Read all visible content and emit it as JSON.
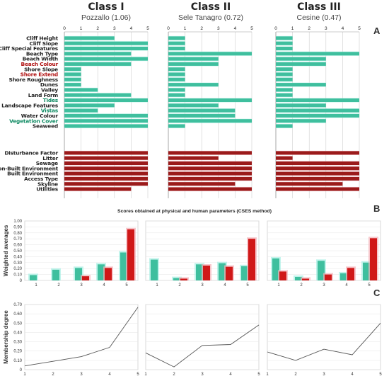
{
  "colors": {
    "physical": "#3fbf9e",
    "physical_glow": "#a8f0e4",
    "human": "#9b1b1b",
    "human_glow": "#f3b0b8",
    "red_bar": "#d01818",
    "grid": "#cfcfcf",
    "line": "#555555"
  },
  "figure": {
    "panel_labels": [
      "A",
      "B",
      "C"
    ],
    "caption": "Scores obtained at physical and human parameters (CSES method)"
  },
  "chart_data": [
    {
      "type": "bar",
      "orientation": "horizontal",
      "panel": "A",
      "titles": [
        {
          "name": "Class I",
          "subtitle": "Pozzallo (1.06)"
        },
        {
          "name": "Class II",
          "subtitle": "Sele Tanagro (0.72)"
        },
        {
          "name": "Class III",
          "subtitle": "Cesine (0.47)"
        }
      ],
      "xlim": [
        0,
        5
      ],
      "xticks": [
        "0",
        "1",
        "2",
        "3",
        "4",
        "5"
      ],
      "physical_parameters": [
        "Cliff Height",
        "Cliff Slope",
        "Cliff Special Features",
        "Beach Type",
        "Beach Width",
        "Beach Colour",
        "Shore Slope",
        "Shore Extend",
        "Shore Roughness",
        "Dunes",
        "Valley",
        "Land Form",
        "Tides",
        "Landscape Features",
        "Vistas",
        "Water Colour",
        "Vegetation Cover",
        "Seaweed"
      ],
      "human_parameters": [
        "Disturbance Factor",
        "Litter",
        "Sewage",
        "Non-Built Environment",
        "Built Environment",
        "Access Type",
        "Skyline",
        "Utilities"
      ],
      "label_colors": {
        "Beach Colour": "red",
        "Shore Extend": "red",
        "Tides": "green",
        "Vistas": "green",
        "Vegetation Cover": "green"
      },
      "series": [
        {
          "physical": [
            3,
            5,
            5,
            4,
            5,
            4,
            1,
            1,
            1,
            1,
            2,
            4,
            5,
            3,
            2,
            5,
            5,
            5
          ],
          "human": [
            5,
            5,
            5,
            5,
            5,
            5,
            5,
            4
          ]
        },
        {
          "physical": [
            1,
            1,
            1,
            5,
            3,
            3,
            1,
            1,
            1,
            3,
            1,
            1,
            5,
            3,
            4,
            4,
            5,
            1
          ],
          "human": [
            5,
            3,
            5,
            5,
            5,
            5,
            4,
            5
          ]
        },
        {
          "physical": [
            1,
            1,
            1,
            5,
            3,
            3,
            1,
            1,
            1,
            3,
            1,
            1,
            5,
            3,
            5,
            5,
            3,
            1
          ],
          "human": [
            5,
            1,
            5,
            5,
            5,
            5,
            4,
            5
          ]
        }
      ]
    },
    {
      "type": "bar",
      "panel": "B",
      "ylabel": "Weighted averages",
      "ylim": [
        0,
        1
      ],
      "yticks": [
        "0",
        "0.10",
        "0.20",
        "0.30",
        "0.40",
        "0.50",
        "0.60",
        "0.70",
        "0.80",
        "0.90",
        "1.00"
      ],
      "categories": [
        "1",
        "2",
        "3",
        "4",
        "5"
      ],
      "series": [
        {
          "physical": [
            0.09,
            0.18,
            0.21,
            0.27,
            0.47
          ],
          "human": [
            0.0,
            0.0,
            0.07,
            0.21,
            0.86
          ]
        },
        {
          "physical": [
            0.35,
            0.04,
            0.27,
            0.29,
            0.24
          ],
          "human": [
            0.0,
            0.03,
            0.25,
            0.23,
            0.7
          ]
        },
        {
          "physical": [
            0.37,
            0.06,
            0.33,
            0.12,
            0.3
          ],
          "human": [
            0.15,
            0.03,
            0.1,
            0.21,
            0.71
          ]
        }
      ]
    },
    {
      "type": "line",
      "panel": "C",
      "ylabel": "Membership degree",
      "ylim": [
        0,
        0.7
      ],
      "yticks": [
        "0",
        "0.10",
        "0.20",
        "0.30",
        "0.40",
        "0.50",
        "0.60",
        "0.70"
      ],
      "x": [
        "1",
        "2",
        "3",
        "4",
        "5"
      ],
      "series": [
        {
          "values": [
            0.04,
            0.09,
            0.14,
            0.24,
            0.67
          ]
        },
        {
          "values": [
            0.18,
            0.03,
            0.26,
            0.27,
            0.48
          ]
        },
        {
          "values": [
            0.19,
            0.1,
            0.22,
            0.16,
            0.5
          ]
        }
      ]
    }
  ]
}
